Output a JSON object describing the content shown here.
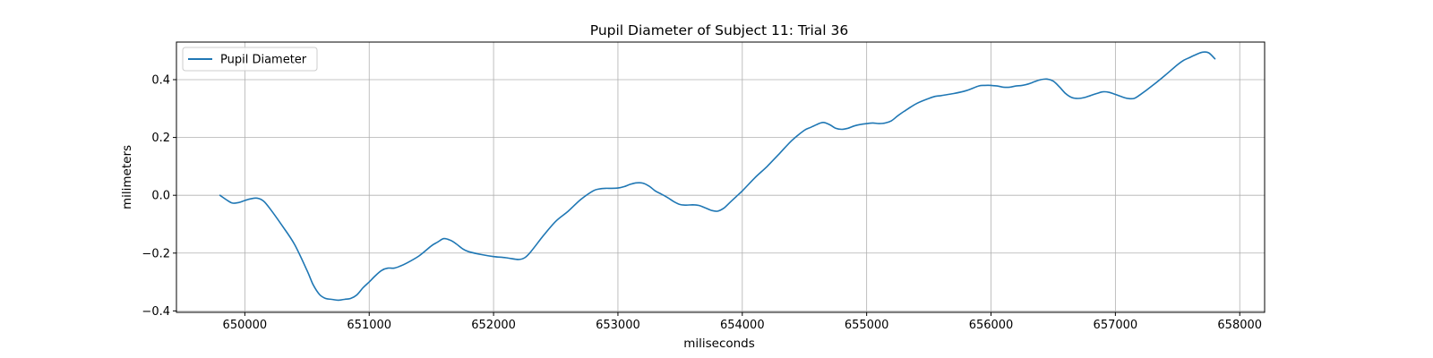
{
  "chart_data": {
    "type": "line",
    "title": "Pupil Diameter of Subject 11: Trial 36",
    "xlabel": "miliseconds",
    "ylabel": "milimeters",
    "xlim": [
      649450,
      658200
    ],
    "ylim": [
      -0.405,
      0.53
    ],
    "xticks": [
      650000,
      651000,
      652000,
      653000,
      654000,
      655000,
      656000,
      657000,
      658000
    ],
    "xtick_labels": [
      "650000",
      "651000",
      "652000",
      "653000",
      "654000",
      "655000",
      "656000",
      "657000",
      "658000"
    ],
    "yticks": [
      -0.4,
      -0.2,
      0.0,
      0.2,
      0.4
    ],
    "ytick_labels": [
      "−0.4",
      "−0.2",
      "0.0",
      "0.2",
      "0.4"
    ],
    "grid": true,
    "legend_position": "upper-left",
    "color": "#1f77b4",
    "series": [
      {
        "name": "Pupil Diameter",
        "x": [
          649800,
          649850,
          649900,
          649950,
          650000,
          650050,
          650100,
          650150,
          650200,
          650300,
          650400,
          650500,
          650550,
          650600,
          650650,
          650700,
          650750,
          650800,
          650850,
          650900,
          650950,
          651000,
          651050,
          651100,
          651150,
          651200,
          651250,
          651300,
          651400,
          651500,
          651550,
          651600,
          651650,
          651700,
          651750,
          651800,
          651900,
          652000,
          652100,
          652200,
          652250,
          652300,
          652400,
          652500,
          652600,
          652700,
          652800,
          652850,
          652900,
          652950,
          653000,
          653050,
          653100,
          653150,
          653200,
          653250,
          653300,
          653350,
          653400,
          653450,
          653500,
          653550,
          653600,
          653650,
          653700,
          653750,
          653800,
          653850,
          653900,
          653950,
          654000,
          654100,
          654200,
          654300,
          654400,
          654500,
          654550,
          654600,
          654650,
          654700,
          654750,
          654800,
          654850,
          654900,
          654950,
          655000,
          655050,
          655100,
          655150,
          655200,
          655250,
          655300,
          655400,
          655500,
          655550,
          655600,
          655700,
          655800,
          655900,
          655950,
          656000,
          656050,
          656100,
          656150,
          656200,
          656250,
          656300,
          656350,
          656400,
          656450,
          656500,
          656550,
          656600,
          656650,
          656700,
          656750,
          656800,
          656850,
          656900,
          656950,
          657000,
          657050,
          657100,
          657150,
          657200,
          657300,
          657400,
          657500,
          657550,
          657600,
          657650,
          657700,
          657750,
          657800
        ],
        "y": [
          0.0,
          -0.015,
          -0.027,
          -0.025,
          -0.018,
          -0.012,
          -0.01,
          -0.02,
          -0.045,
          -0.105,
          -0.17,
          -0.26,
          -0.31,
          -0.343,
          -0.357,
          -0.36,
          -0.363,
          -0.36,
          -0.357,
          -0.345,
          -0.32,
          -0.3,
          -0.278,
          -0.26,
          -0.252,
          -0.252,
          -0.245,
          -0.235,
          -0.21,
          -0.175,
          -0.162,
          -0.15,
          -0.155,
          -0.168,
          -0.185,
          -0.195,
          -0.205,
          -0.212,
          -0.216,
          -0.222,
          -0.216,
          -0.195,
          -0.14,
          -0.09,
          -0.055,
          -0.015,
          0.015,
          0.022,
          0.024,
          0.024,
          0.025,
          0.03,
          0.038,
          0.043,
          0.042,
          0.032,
          0.015,
          0.004,
          -0.008,
          -0.022,
          -0.032,
          -0.034,
          -0.033,
          -0.035,
          -0.043,
          -0.052,
          -0.055,
          -0.045,
          -0.025,
          -0.005,
          0.015,
          0.06,
          0.1,
          0.145,
          0.19,
          0.225,
          0.235,
          0.245,
          0.252,
          0.245,
          0.232,
          0.228,
          0.232,
          0.24,
          0.245,
          0.248,
          0.25,
          0.248,
          0.25,
          0.258,
          0.275,
          0.29,
          0.317,
          0.335,
          0.342,
          0.345,
          0.352,
          0.362,
          0.378,
          0.38,
          0.38,
          0.378,
          0.374,
          0.374,
          0.378,
          0.38,
          0.385,
          0.393,
          0.4,
          0.402,
          0.395,
          0.375,
          0.352,
          0.338,
          0.335,
          0.338,
          0.345,
          0.352,
          0.358,
          0.356,
          0.349,
          0.341,
          0.335,
          0.335,
          0.348,
          0.38,
          0.415,
          0.452,
          0.467,
          0.477,
          0.487,
          0.495,
          0.493,
          0.472
        ]
      }
    ]
  }
}
